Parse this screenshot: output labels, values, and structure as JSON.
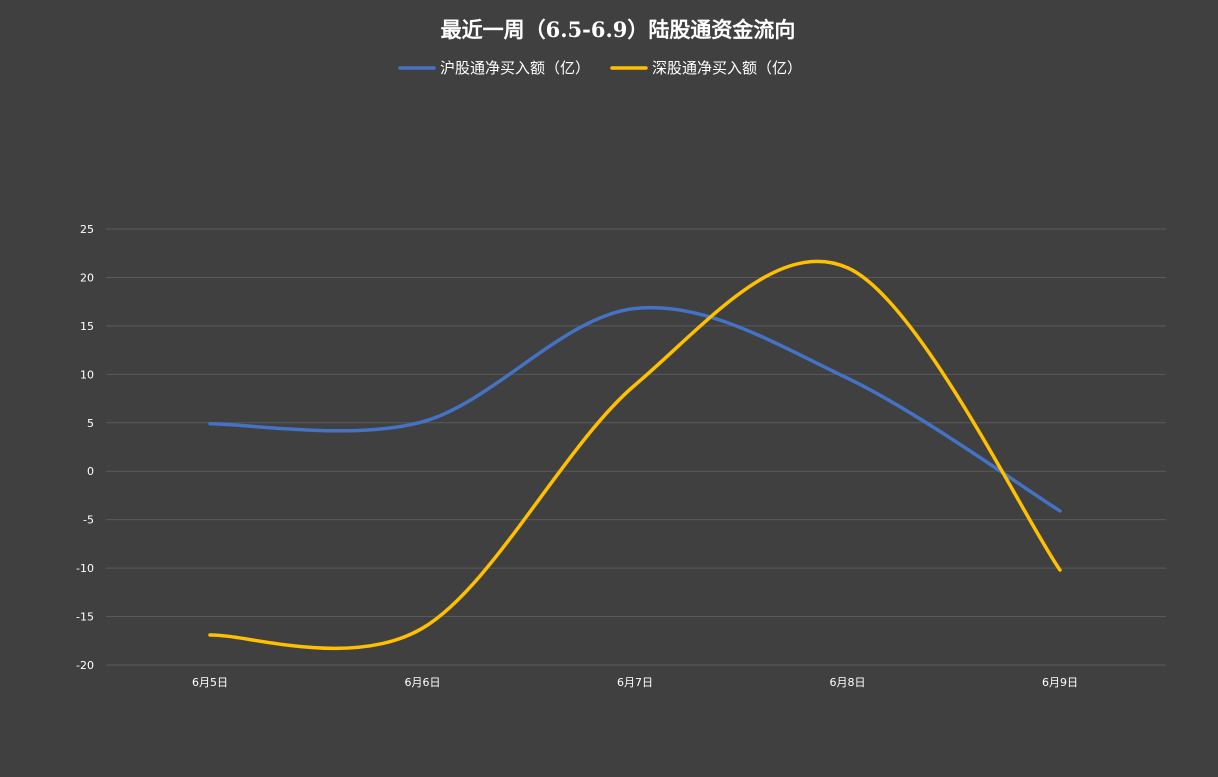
{
  "chart_data": {
    "type": "line",
    "title": "最近一周（6.5-6.9）陆股通资金流向",
    "categories": [
      "6月5日",
      "6月6日",
      "6月7日",
      "6月8日",
      "6月9日"
    ],
    "series": [
      {
        "name": "沪股通净买入额（亿）",
        "color": "#4472c4",
        "values": [
          4.9,
          5.1,
          16.8,
          9.6,
          -4.1
        ]
      },
      {
        "name": "深股通净买入额（亿）",
        "color": "#ffc000",
        "values": [
          -16.9,
          -16.2,
          8.9,
          21.0,
          -10.2
        ]
      }
    ],
    "ylim": [
      -20,
      25
    ],
    "yticks": [
      "25",
      "20",
      "15",
      "10",
      "5",
      "0",
      "-5",
      "-10",
      "-15",
      "-20"
    ],
    "grid": true,
    "legend_position": "top",
    "smooth": true
  }
}
